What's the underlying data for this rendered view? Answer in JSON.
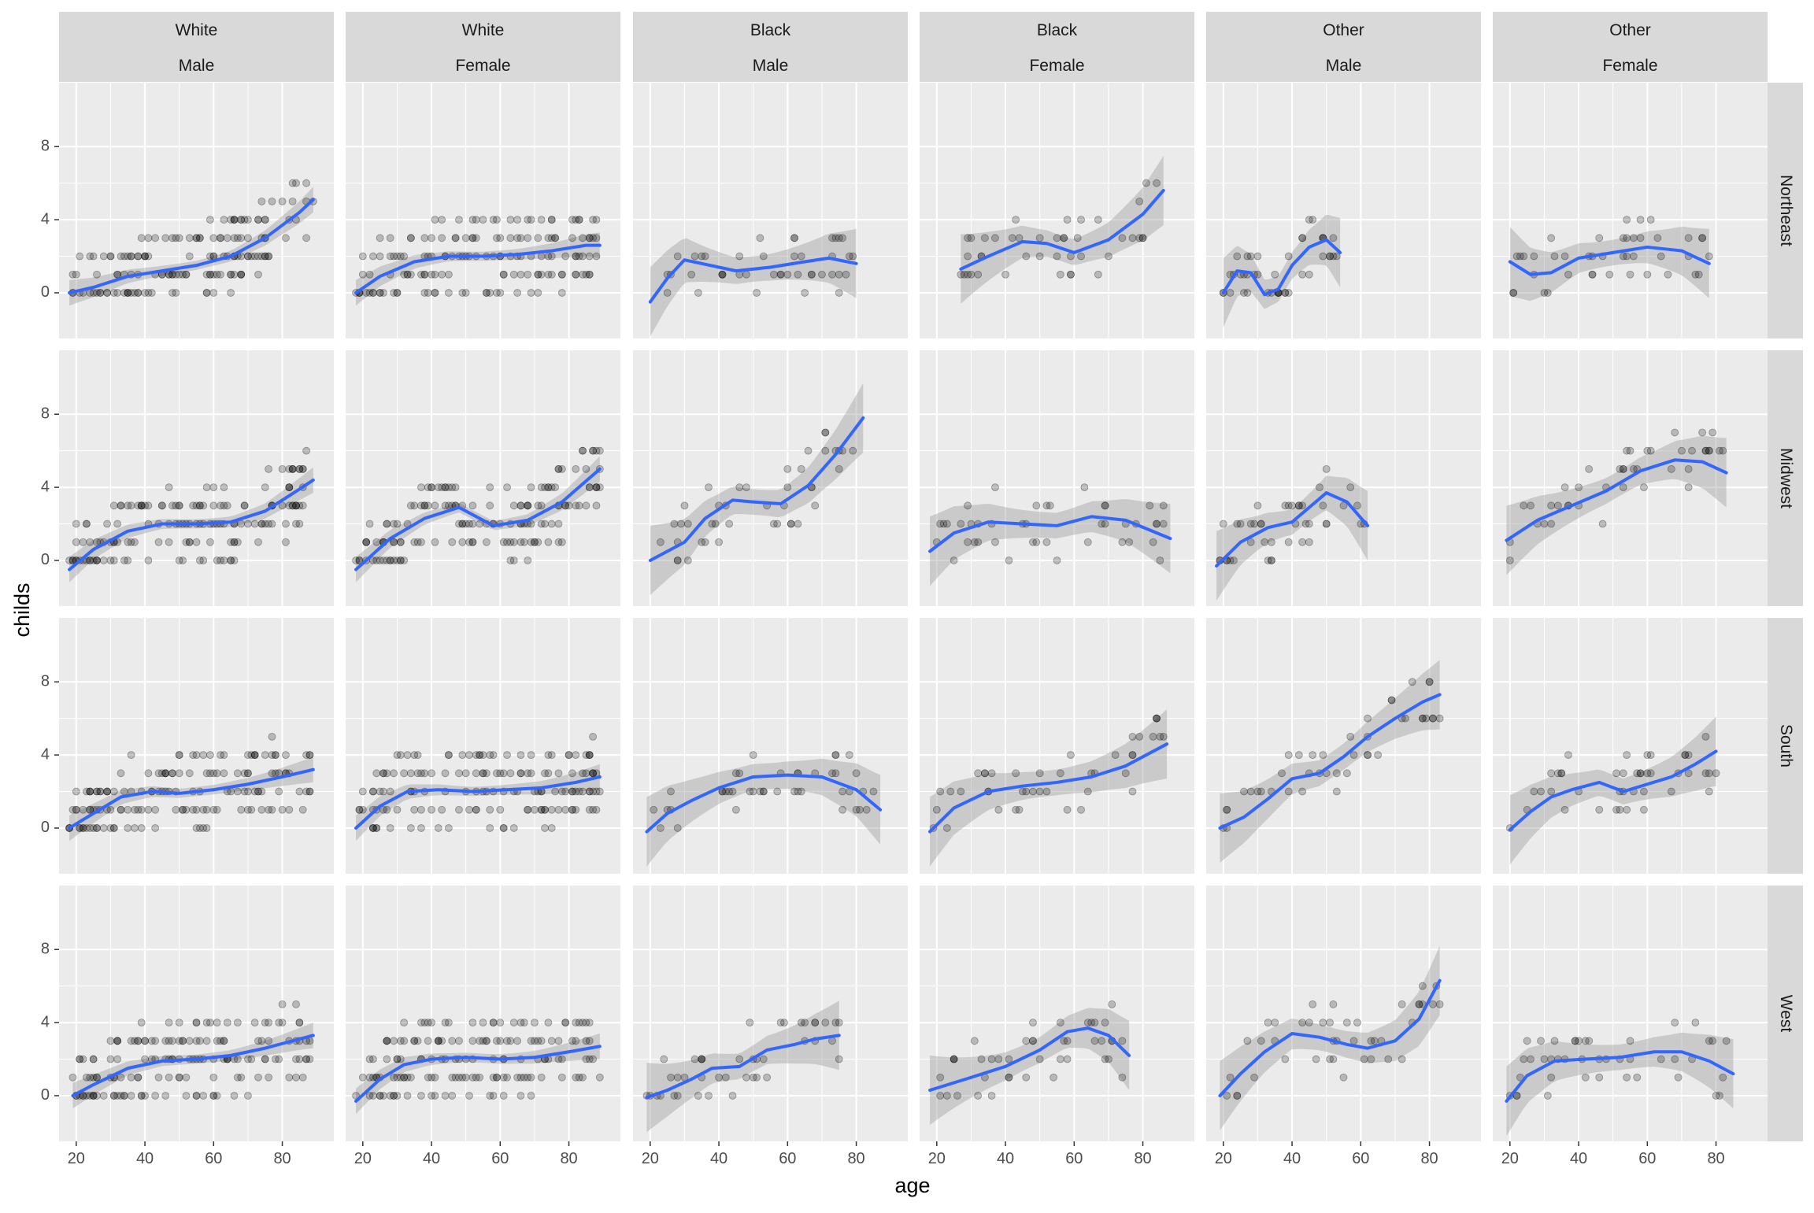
{
  "chart_data": {
    "type": "scatter",
    "xlabel": "age",
    "ylabel": "childs",
    "facet_cols": [
      {
        "race": "White",
        "sex": "Male"
      },
      {
        "race": "White",
        "sex": "Female"
      },
      {
        "race": "Black",
        "sex": "Male"
      },
      {
        "race": "Black",
        "sex": "Female"
      },
      {
        "race": "Other",
        "sex": "Male"
      },
      {
        "race": "Other",
        "sex": "Female"
      }
    ],
    "facet_rows": [
      "Northeast",
      "Midwest",
      "South",
      "West"
    ],
    "x_ticks": [
      20,
      40,
      60,
      80
    ],
    "y_ticks": [
      0,
      4,
      8
    ],
    "xlim": [
      15,
      95
    ],
    "ylim": [
      -2.5,
      11.5
    ],
    "grid": true,
    "colors": {
      "panel_background": "#EBEBEB",
      "grid": "#FFFFFF",
      "strip": "#D9D9D9",
      "point": "#000000",
      "smooth_line": "#3366FF",
      "ribbon": "#999999"
    },
    "panels": [
      {
        "row": "Northeast",
        "col": 0,
        "smooth": [
          [
            18,
            0
          ],
          [
            25,
            0.3
          ],
          [
            35,
            0.9
          ],
          [
            45,
            1.2
          ],
          [
            55,
            1.5
          ],
          [
            65,
            2
          ],
          [
            75,
            3
          ],
          [
            85,
            4.4
          ],
          [
            89,
            5.1
          ]
        ]
      },
      {
        "row": "Northeast",
        "col": 1,
        "smooth": [
          [
            18,
            0
          ],
          [
            25,
            0.9
          ],
          [
            35,
            1.7
          ],
          [
            45,
            2
          ],
          [
            55,
            2
          ],
          [
            65,
            2.1
          ],
          [
            75,
            2.3
          ],
          [
            85,
            2.6
          ],
          [
            89,
            2.6
          ]
        ]
      },
      {
        "row": "Northeast",
        "col": 2,
        "smooth": [
          [
            20,
            -0.5
          ],
          [
            25,
            0.8
          ],
          [
            30,
            1.8
          ],
          [
            35,
            1.6
          ],
          [
            45,
            1.2
          ],
          [
            55,
            1.4
          ],
          [
            65,
            1.7
          ],
          [
            72,
            1.9
          ],
          [
            80,
            1.6
          ]
        ]
      },
      {
        "row": "Northeast",
        "col": 3,
        "smooth": [
          [
            27,
            1.3
          ],
          [
            35,
            2
          ],
          [
            45,
            2.8
          ],
          [
            52,
            2.7
          ],
          [
            60,
            2.2
          ],
          [
            70,
            2.9
          ],
          [
            80,
            4.3
          ],
          [
            86,
            5.6
          ]
        ]
      },
      {
        "row": "Northeast",
        "col": 4,
        "smooth": [
          [
            20,
            0
          ],
          [
            24,
            1.2
          ],
          [
            28,
            1.1
          ],
          [
            32,
            -0.1
          ],
          [
            36,
            0.2
          ],
          [
            40,
            1.5
          ],
          [
            45,
            2.5
          ],
          [
            50,
            2.9
          ],
          [
            54,
            2.2
          ]
        ]
      },
      {
        "row": "Northeast",
        "col": 5,
        "smooth": [
          [
            20,
            1.7
          ],
          [
            26,
            1
          ],
          [
            32,
            1.1
          ],
          [
            40,
            1.9
          ],
          [
            50,
            2.2
          ],
          [
            60,
            2.5
          ],
          [
            70,
            2.3
          ],
          [
            78,
            1.6
          ]
        ]
      },
      {
        "row": "Midwest",
        "col": 0,
        "smooth": [
          [
            18,
            -0.5
          ],
          [
            25,
            0.6
          ],
          [
            35,
            1.6
          ],
          [
            45,
            2
          ],
          [
            55,
            2
          ],
          [
            65,
            2.1
          ],
          [
            75,
            2.7
          ],
          [
            85,
            3.9
          ],
          [
            89,
            4.4
          ]
        ]
      },
      {
        "row": "Midwest",
        "col": 1,
        "smooth": [
          [
            18,
            -0.5
          ],
          [
            28,
            1.2
          ],
          [
            38,
            2.3
          ],
          [
            48,
            2.9
          ],
          [
            58,
            1.9
          ],
          [
            68,
            2.2
          ],
          [
            78,
            3.2
          ],
          [
            89,
            5
          ]
        ]
      },
      {
        "row": "Midwest",
        "col": 2,
        "smooth": [
          [
            20,
            0
          ],
          [
            30,
            1
          ],
          [
            36,
            2.3
          ],
          [
            44,
            3.3
          ],
          [
            50,
            3.2
          ],
          [
            58,
            3.1
          ],
          [
            66,
            4.1
          ],
          [
            74,
            5.8
          ],
          [
            82,
            7.8
          ]
        ]
      },
      {
        "row": "Midwest",
        "col": 3,
        "smooth": [
          [
            18,
            0.5
          ],
          [
            25,
            1.5
          ],
          [
            35,
            2.1
          ],
          [
            45,
            2
          ],
          [
            55,
            1.9
          ],
          [
            65,
            2.4
          ],
          [
            75,
            2.2
          ],
          [
            88,
            1.2
          ]
        ]
      },
      {
        "row": "Midwest",
        "col": 4,
        "smooth": [
          [
            18,
            -0.3
          ],
          [
            25,
            1
          ],
          [
            33,
            1.8
          ],
          [
            40,
            2.1
          ],
          [
            45,
            2.9
          ],
          [
            50,
            3.7
          ],
          [
            56,
            3.2
          ],
          [
            62,
            1.9
          ]
        ]
      },
      {
        "row": "Midwest",
        "col": 5,
        "smooth": [
          [
            19,
            1.1
          ],
          [
            28,
            2.2
          ],
          [
            38,
            3
          ],
          [
            48,
            3.8
          ],
          [
            58,
            4.9
          ],
          [
            68,
            5.5
          ],
          [
            76,
            5.4
          ],
          [
            83,
            4.8
          ]
        ]
      },
      {
        "row": "South",
        "col": 0,
        "smooth": [
          [
            18,
            0
          ],
          [
            25,
            0.8
          ],
          [
            33,
            1.7
          ],
          [
            42,
            2
          ],
          [
            50,
            1.9
          ],
          [
            60,
            2.1
          ],
          [
            70,
            2.4
          ],
          [
            80,
            2.8
          ],
          [
            89,
            3.2
          ]
        ]
      },
      {
        "row": "South",
        "col": 1,
        "smooth": [
          [
            18,
            0
          ],
          [
            25,
            1.2
          ],
          [
            33,
            2
          ],
          [
            42,
            2.1
          ],
          [
            52,
            2
          ],
          [
            62,
            2.1
          ],
          [
            72,
            2.2
          ],
          [
            82,
            2.5
          ],
          [
            89,
            2.8
          ]
        ]
      },
      {
        "row": "South",
        "col": 2,
        "smooth": [
          [
            19,
            -0.2
          ],
          [
            25,
            0.8
          ],
          [
            32,
            1.5
          ],
          [
            40,
            2.2
          ],
          [
            50,
            2.8
          ],
          [
            60,
            2.9
          ],
          [
            70,
            2.8
          ],
          [
            80,
            2.1
          ],
          [
            87,
            1
          ]
        ]
      },
      {
        "row": "South",
        "col": 3,
        "smooth": [
          [
            18,
            -0.2
          ],
          [
            25,
            1.1
          ],
          [
            35,
            2
          ],
          [
            45,
            2.3
          ],
          [
            55,
            2.5
          ],
          [
            65,
            2.8
          ],
          [
            75,
            3.4
          ],
          [
            87,
            4.6
          ]
        ]
      },
      {
        "row": "South",
        "col": 4,
        "smooth": [
          [
            19,
            0
          ],
          [
            26,
            0.6
          ],
          [
            33,
            1.6
          ],
          [
            40,
            2.7
          ],
          [
            48,
            3
          ],
          [
            55,
            3.9
          ],
          [
            62,
            5
          ],
          [
            70,
            6
          ],
          [
            78,
            6.9
          ],
          [
            83,
            7.3
          ]
        ]
      },
      {
        "row": "South",
        "col": 5,
        "smooth": [
          [
            20,
            -0.1
          ],
          [
            26,
            0.9
          ],
          [
            32,
            1.7
          ],
          [
            38,
            2.1
          ],
          [
            46,
            2.5
          ],
          [
            53,
            2
          ],
          [
            60,
            2.4
          ],
          [
            67,
            2.8
          ],
          [
            74,
            3.5
          ],
          [
            80,
            4.2
          ]
        ]
      },
      {
        "row": "West",
        "col": 0,
        "smooth": [
          [
            19,
            0
          ],
          [
            25,
            0.6
          ],
          [
            35,
            1.5
          ],
          [
            45,
            1.9
          ],
          [
            55,
            2
          ],
          [
            65,
            2.2
          ],
          [
            75,
            2.6
          ],
          [
            85,
            3.1
          ],
          [
            89,
            3.3
          ]
        ]
      },
      {
        "row": "West",
        "col": 1,
        "smooth": [
          [
            18,
            -0.3
          ],
          [
            25,
            0.9
          ],
          [
            32,
            1.7
          ],
          [
            40,
            2
          ],
          [
            50,
            2.1
          ],
          [
            60,
            2
          ],
          [
            70,
            2.1
          ],
          [
            80,
            2.4
          ],
          [
            89,
            2.7
          ]
        ]
      },
      {
        "row": "West",
        "col": 2,
        "smooth": [
          [
            19,
            -0.1
          ],
          [
            25,
            0.3
          ],
          [
            32,
            0.9
          ],
          [
            38,
            1.5
          ],
          [
            46,
            1.6
          ],
          [
            54,
            2.5
          ],
          [
            62,
            2.8
          ],
          [
            68,
            3.1
          ],
          [
            75,
            3.3
          ]
        ]
      },
      {
        "row": "West",
        "col": 3,
        "smooth": [
          [
            18,
            0.3
          ],
          [
            30,
            1
          ],
          [
            40,
            1.6
          ],
          [
            50,
            2.5
          ],
          [
            58,
            3.5
          ],
          [
            64,
            3.7
          ],
          [
            70,
            3.3
          ],
          [
            76,
            2.2
          ]
        ]
      },
      {
        "row": "West",
        "col": 4,
        "smooth": [
          [
            19,
            0
          ],
          [
            25,
            1.2
          ],
          [
            32,
            2.4
          ],
          [
            40,
            3.4
          ],
          [
            48,
            3.2
          ],
          [
            56,
            2.8
          ],
          [
            62,
            2.6
          ],
          [
            70,
            3
          ],
          [
            77,
            4.2
          ],
          [
            83,
            6.3
          ]
        ]
      },
      {
        "row": "West",
        "col": 5,
        "smooth": [
          [
            19,
            -0.3
          ],
          [
            25,
            1.1
          ],
          [
            33,
            1.9
          ],
          [
            42,
            2
          ],
          [
            52,
            2.1
          ],
          [
            62,
            2.4
          ],
          [
            70,
            2.4
          ],
          [
            78,
            1.9
          ],
          [
            85,
            1.2
          ]
        ]
      }
    ]
  }
}
